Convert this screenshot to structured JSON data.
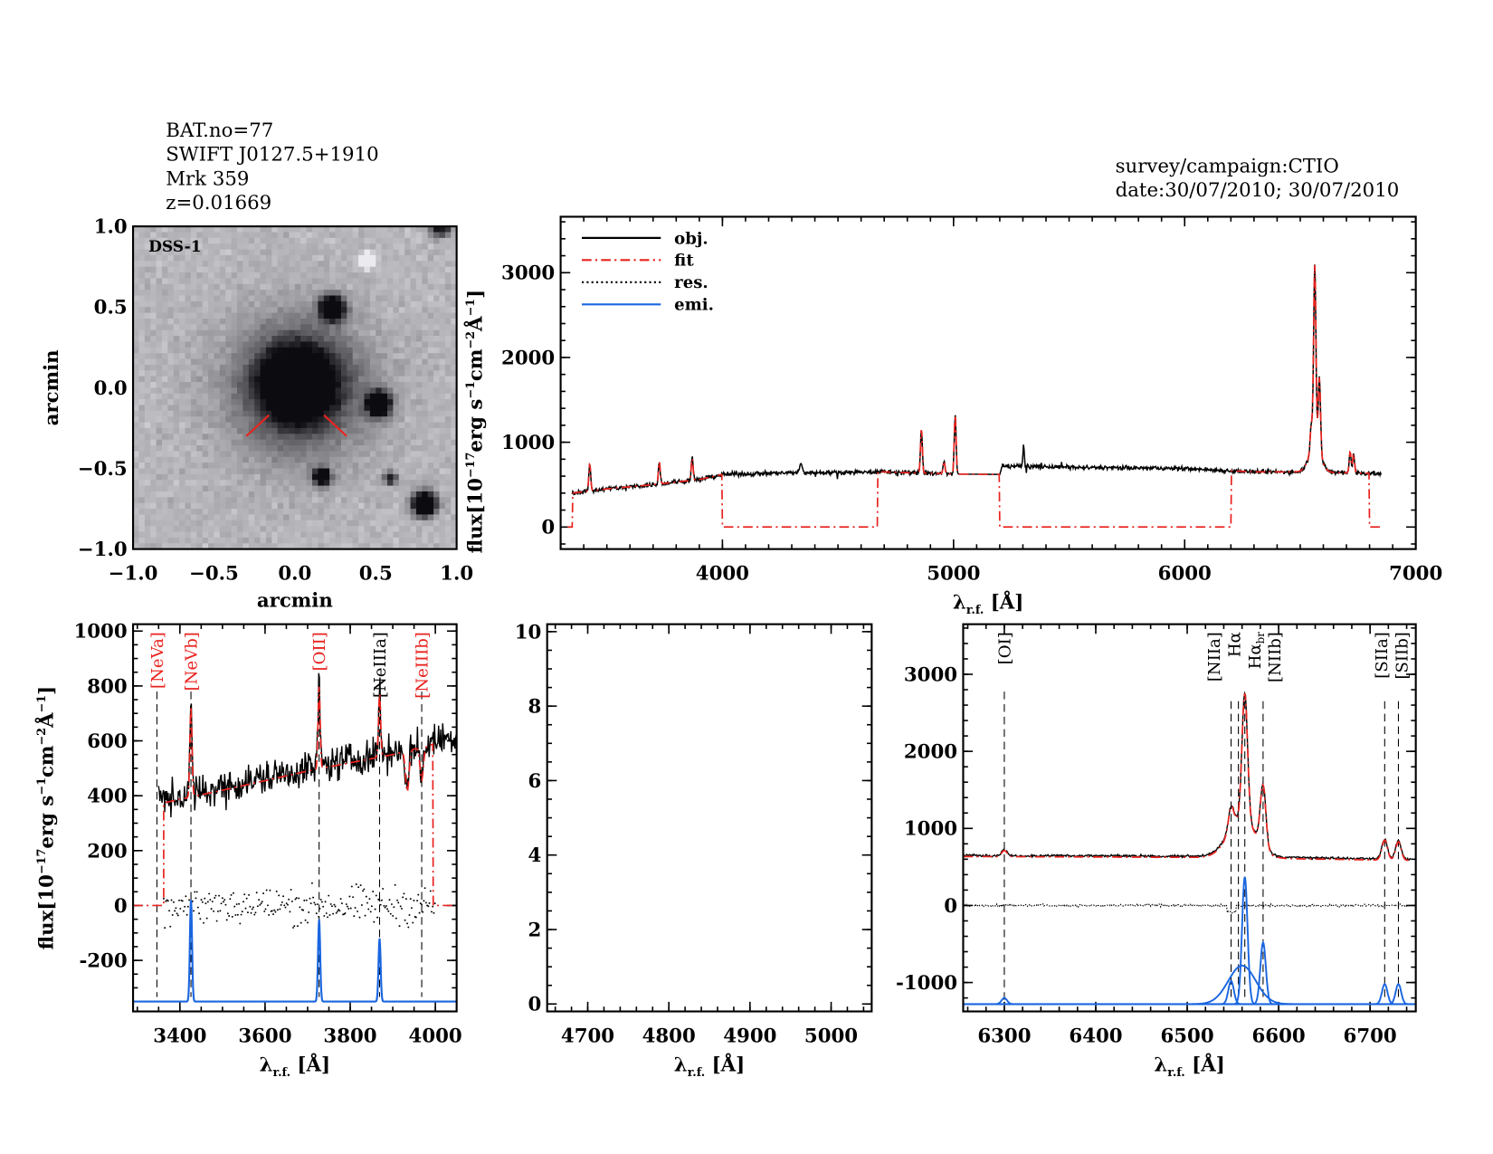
{
  "header": {
    "lines": [
      "BAT.no=77",
      "SWIFT J0127.5+1910",
      "Mrk 359",
      "z=0.01669"
    ],
    "survey": "survey/campaign:CTIO",
    "date": "date:30/07/2010; 30/07/2010"
  },
  "colors": {
    "obj": "#000000",
    "fit": "#e8231f",
    "res": "#000000",
    "emi": "#1a66e0",
    "marker": "#e8231f"
  },
  "chart_data": [
    {
      "type": "image",
      "label": "DSS-1",
      "xlabel": "arcmin",
      "ylabel": "arcmin",
      "xlim": [
        -1,
        1
      ],
      "ylim": [
        -1,
        1
      ],
      "xticks": [
        -1,
        -0.5,
        0,
        0.5,
        1
      ],
      "xtick_labels": [
        "−1.0",
        "−0.5",
        "0.0",
        "0.5",
        "1.0"
      ],
      "yticks": [
        -1,
        -0.5,
        0,
        0.5,
        1
      ],
      "ytick_labels": [
        "−1.0",
        "−0.5",
        "0.0",
        "0.5",
        "1.0"
      ],
      "sources": [
        {
          "x": 0.02,
          "y": 0.02,
          "size": 0.14,
          "depth": 1.0
        },
        {
          "x": 0.02,
          "y": 0.0,
          "size": 0.3,
          "depth": 0.35
        },
        {
          "x": 0.23,
          "y": 0.49,
          "size": 0.05,
          "depth": 0.95
        },
        {
          "x": 0.52,
          "y": -0.1,
          "size": 0.05,
          "depth": 0.95
        },
        {
          "x": 0.17,
          "y": -0.55,
          "size": 0.035,
          "depth": 0.8
        },
        {
          "x": 0.59,
          "y": -0.56,
          "size": 0.025,
          "depth": 0.6
        },
        {
          "x": 0.8,
          "y": -0.72,
          "size": 0.05,
          "depth": 0.95
        },
        {
          "x": 0.9,
          "y": 1.0,
          "size": 0.04,
          "depth": 0.7
        },
        {
          "x": 0.45,
          "y": 0.79,
          "size": 0.03,
          "depth": -0.6
        }
      ],
      "markers": [
        [
          [
            -0.3,
            -0.3
          ],
          [
            -0.16,
            -0.17
          ]
        ],
        [
          [
            0.32,
            -0.3
          ],
          [
            0.18,
            -0.17
          ]
        ]
      ]
    },
    {
      "type": "line",
      "xlabel": "λ",
      "xlabel_sub": "r.f.",
      "xlabel_unit": " [Å]",
      "ylabel": "flux[10",
      "ylabel_rest": [
        "−17",
        "erg s",
        "−1",
        "cm",
        "−2",
        "Å",
        "−1",
        "]"
      ],
      "xlim": [
        3300,
        7000
      ],
      "ylim": [
        -260,
        3660
      ],
      "xticks": [
        4000,
        5000,
        6000,
        7000
      ],
      "yticks": [
        0,
        1000,
        2000,
        3000
      ],
      "legend": {
        "position": "top-left",
        "entries": [
          {
            "name": "obj.",
            "style": "solid",
            "color": "#000000"
          },
          {
            "name": "fit",
            "style": "dash-dot",
            "color": "#e8231f"
          },
          {
            "name": "res.",
            "style": "dotted",
            "color": "#000000"
          },
          {
            "name": "emi.",
            "style": "solid",
            "color": "#1a66e0"
          }
        ]
      },
      "obj_range": [
        3350,
        6850
      ],
      "continuum": [
        [
          3350,
          400
        ],
        [
          3500,
          450
        ],
        [
          3700,
          500
        ],
        [
          3900,
          560
        ],
        [
          4000,
          620
        ],
        [
          4300,
          640
        ],
        [
          4700,
          650
        ],
        [
          5000,
          625
        ],
        [
          5200,
          620
        ],
        [
          5210,
          720
        ],
        [
          5600,
          700
        ],
        [
          6000,
          690
        ],
        [
          6300,
          650
        ],
        [
          6500,
          650
        ],
        [
          6700,
          640
        ],
        [
          6850,
          630
        ]
      ],
      "lines": [
        {
          "wave": 3426,
          "peak": 320,
          "sigma": 4
        },
        {
          "wave": 3727,
          "peak": 260,
          "sigma": 4
        },
        {
          "wave": 3869,
          "peak": 260,
          "sigma": 4
        },
        {
          "wave": 4340,
          "peak": 100,
          "sigma": 6
        },
        {
          "wave": 4861,
          "peak": 520,
          "sigma": 4
        },
        {
          "wave": 4959,
          "peak": 150,
          "sigma": 4
        },
        {
          "wave": 5007,
          "peak": 700,
          "sigma": 4
        },
        {
          "wave": 5303,
          "peak": 250,
          "sigma": 3
        },
        {
          "wave": 6548,
          "peak": 300,
          "sigma": 5
        },
        {
          "wave": 6563,
          "peak": 2150,
          "sigma": 5
        },
        {
          "wave": 6563,
          "peak": 300,
          "sigma": 25
        },
        {
          "wave": 6583,
          "peak": 900,
          "sigma": 5
        },
        {
          "wave": 6716,
          "peak": 250,
          "sigma": 4
        },
        {
          "wave": 6731,
          "peak": 230,
          "sigma": 4
        }
      ],
      "fit_masked": [
        [
          3300,
          3352
        ],
        [
          4000,
          4670
        ],
        [
          5200,
          6200
        ],
        [
          6800,
          6850
        ]
      ]
    },
    {
      "type": "line",
      "xlabel": "λ",
      "xlabel_sub": "r.f.",
      "xlabel_unit": " [Å]",
      "ylabel": "flux[10",
      "ylabel_rest": [
        "−17",
        "erg s",
        "−1",
        "cm",
        "−2",
        "Å",
        "−1",
        "]"
      ],
      "xlim": [
        3290,
        4050
      ],
      "ylim": [
        -386,
        1025
      ],
      "xticks": [
        3400,
        3600,
        3800,
        4000
      ],
      "yticks": [
        -200,
        0,
        200,
        400,
        600,
        800,
        1000
      ],
      "obj_range": [
        3350,
        4050
      ],
      "continuum": [
        [
          3350,
          380
        ],
        [
          3500,
          430
        ],
        [
          3700,
          500
        ],
        [
          3900,
          560
        ],
        [
          4050,
          620
        ]
      ],
      "lines": [
        {
          "wave": 3426,
          "peak": 330,
          "sigma": 2.5
        },
        {
          "wave": 3727,
          "peak": 300,
          "sigma": 2.5
        },
        {
          "wave": 3869,
          "peak": 230,
          "sigma": 2.5
        },
        {
          "wave": 3934,
          "peak": -150,
          "sigma": 4
        },
        {
          "wave": 3968,
          "peak": -120,
          "sigma": 4
        }
      ],
      "emi_baseline": -350,
      "emi_lines": [
        {
          "wave": 3426,
          "peak": 370,
          "sigma": 2.5
        },
        {
          "wave": 3727,
          "peak": 300,
          "sigma": 2.5
        },
        {
          "wave": 3869,
          "peak": 230,
          "sigma": 2.5
        }
      ],
      "fit_range": [
        3362,
        3995
      ],
      "line_labels": [
        {
          "text": "[NeVa]",
          "wave": 3346,
          "color": "#e8231f"
        },
        {
          "text": "[NeVb]",
          "wave": 3426,
          "color": "#e8231f"
        },
        {
          "text": "[OII]",
          "wave": 3727,
          "color": "#e8231f"
        },
        {
          "text": "[NeIIIa]",
          "wave": 3869,
          "color": "#000000"
        },
        {
          "text": "[NeIIIb]",
          "wave": 3968,
          "color": "#e8231f"
        }
      ]
    },
    {
      "type": "line",
      "xlabel": "λ",
      "xlabel_sub": "r.f.",
      "xlabel_unit": " [Å]",
      "xlim": [
        4650,
        5050
      ],
      "ylim": [
        -0.2,
        10.2
      ],
      "xticks": [
        4700,
        4800,
        4900,
        5000
      ],
      "yticks": [
        0,
        2,
        4,
        6,
        8,
        10
      ]
    },
    {
      "type": "line",
      "xlabel": "λ",
      "xlabel_sub": "r.f.",
      "xlabel_unit": " [Å]",
      "xlim": [
        6255,
        6750
      ],
      "ylim": [
        -1375,
        3650
      ],
      "xticks": [
        6300,
        6400,
        6500,
        6600,
        6700
      ],
      "yticks": [
        -1000,
        0,
        1000,
        2000,
        3000
      ],
      "obj_range": [
        6255,
        6745
      ],
      "continuum": [
        [
          6255,
          650
        ],
        [
          6500,
          640
        ],
        [
          6745,
          600
        ]
      ],
      "lines": [
        {
          "wave": 6300,
          "peak": 80,
          "sigma": 3
        },
        {
          "wave": 6548,
          "peak": 300,
          "sigma": 3
        },
        {
          "wave": 6563,
          "peak": 1650,
          "sigma": 3
        },
        {
          "wave": 6560,
          "peak": 500,
          "sigma": 15
        },
        {
          "wave": 6583,
          "peak": 800,
          "sigma": 3
        },
        {
          "wave": 6716,
          "peak": 260,
          "sigma": 3
        },
        {
          "wave": 6731,
          "peak": 240,
          "sigma": 3
        }
      ],
      "emi_baseline": -1280,
      "emi_lines": [
        {
          "wave": 6300,
          "peak": 80,
          "sigma": 3
        },
        {
          "wave": 6548,
          "peak": 300,
          "sigma": 3
        },
        {
          "wave": 6563,
          "peak": 1650,
          "sigma": 3
        },
        {
          "wave": 6560,
          "peak": 500,
          "sigma": 15
        },
        {
          "wave": 6583,
          "peak": 800,
          "sigma": 3
        },
        {
          "wave": 6716,
          "peak": 260,
          "sigma": 3
        },
        {
          "wave": 6731,
          "peak": 260,
          "sigma": 3
        }
      ],
      "line_labels": [
        {
          "text": "[OI]",
          "wave": 6300,
          "color": "#000000"
        },
        {
          "text": "[NIIa]",
          "wave": 6548,
          "color": "#000000"
        },
        {
          "text": "Hα",
          "wave": 6556,
          "color": "#000000"
        },
        {
          "text": "Hα",
          "sub": "br",
          "wave": 6563,
          "color": "#000000"
        },
        {
          "text": "[NIIb]",
          "wave": 6583,
          "color": "#000000"
        },
        {
          "text": "[SIIa]",
          "wave": 6716,
          "color": "#000000"
        },
        {
          "text": "[SIIb]",
          "wave": 6731,
          "color": "#000000"
        }
      ]
    }
  ]
}
